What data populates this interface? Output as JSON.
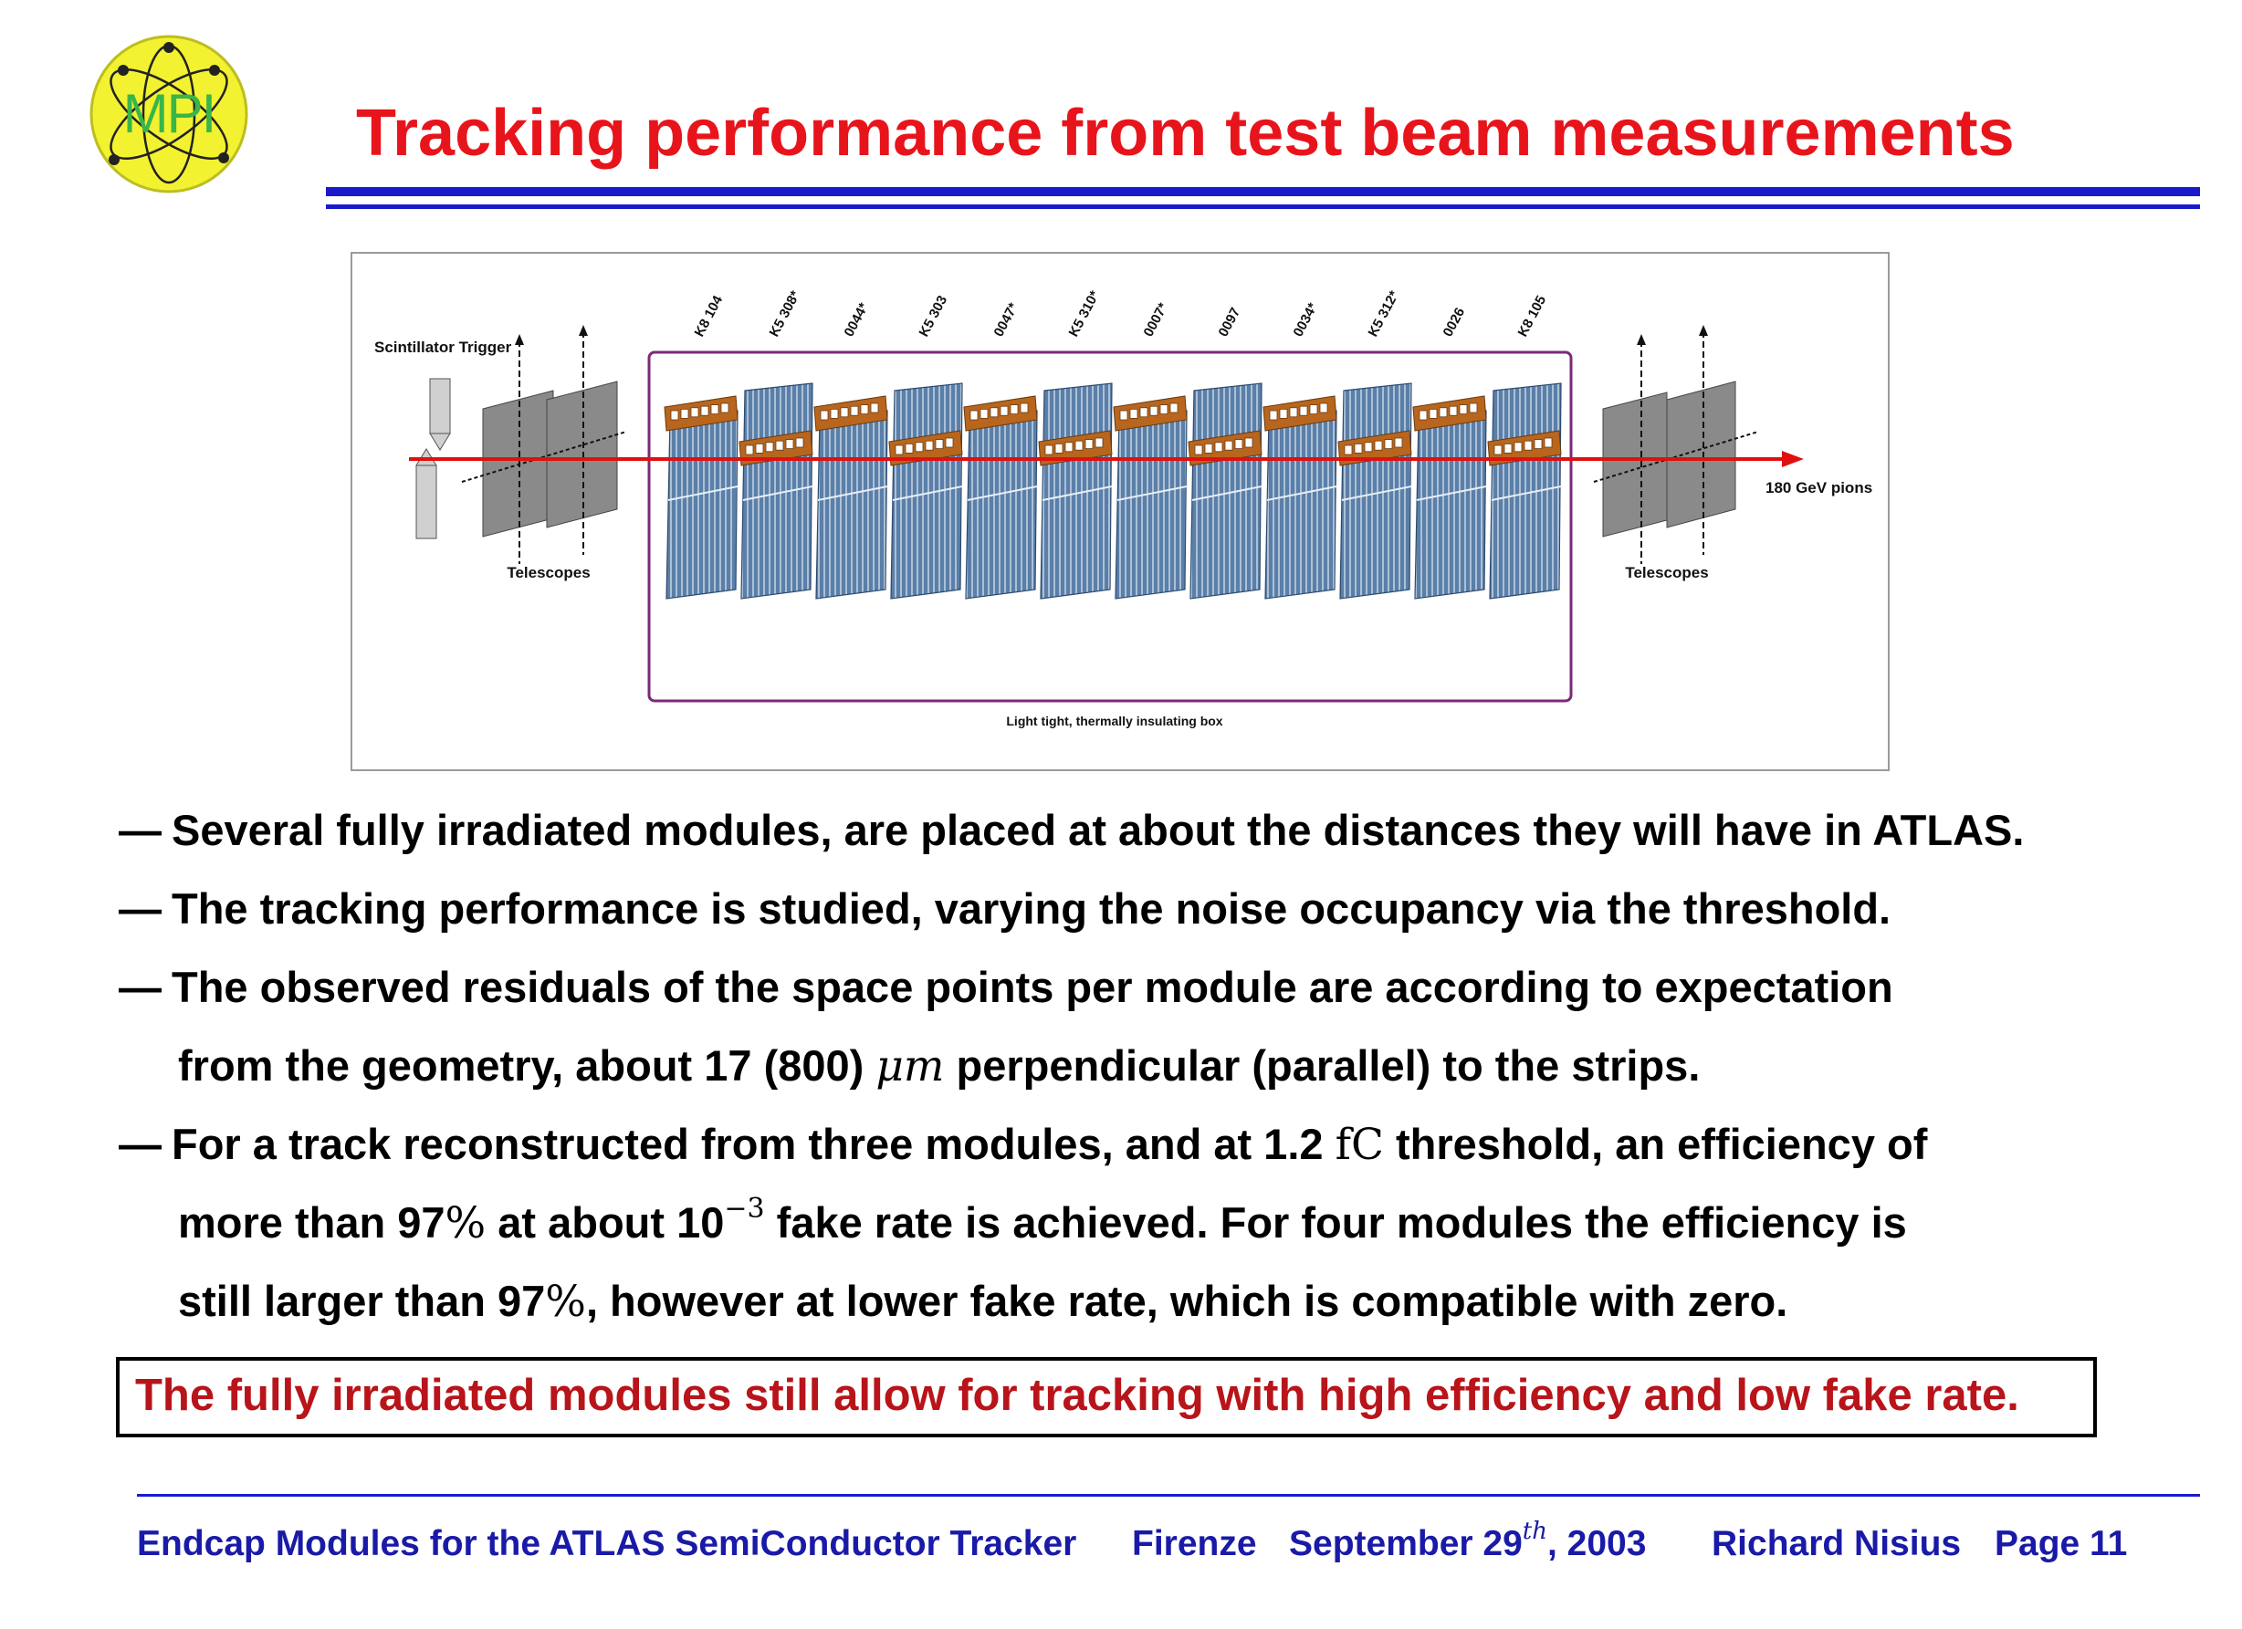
{
  "logo": {
    "text": "MPI"
  },
  "title": "Tracking performance from test beam measurements",
  "figure": {
    "scintillator_label": "Scintillator Trigger",
    "telescopes_left": "Telescopes",
    "telescopes_right": "Telescopes",
    "beam_label": "180 GeV pions",
    "box_label": "Light tight, thermally insulating box",
    "modules": [
      "K8 104",
      "K5 308*",
      "0044*",
      "K5 303",
      "0047*",
      "K5 310*",
      "0007*",
      "0097",
      "0034*",
      "K5 312*",
      "0026",
      "K8 105"
    ]
  },
  "bullets": {
    "b1": "Several fully irradiated modules, are placed at about the distances they will have in ATLAS.",
    "b2": "The tracking performance is studied, varying the noise occupancy via the threshold.",
    "b3_line1": "The observed residuals of the space points per module are according to expectation",
    "b3_line2_pre": "from the geometry, about 17 (800) ",
    "b3_line2_math": "μm",
    "b3_line2_post": " perpendicular (parallel) to the strips.",
    "b4_line1_pre": "For a track reconstructed from three modules, and at 1.2 ",
    "b4_line1_unit": "fC",
    "b4_line1_post": " threshold, an efficiency of",
    "b4_line2_a": "more than 97",
    "b4_line2_pct": "%",
    "b4_line2_b": " at about 10",
    "b4_line2_exp": "−3",
    "b4_line2_c": " fake rate is achieved. For four modules the efficiency is",
    "b4_line3_a": "still larger than 97",
    "b4_line3_pct": "%",
    "b4_line3_b": ", however at lower fake rate, which is compatible with zero."
  },
  "conclusion": "The fully irradiated modules still allow for tracking with high efficiency and low fake rate.",
  "footer": {
    "talk": "Endcap Modules for the ATLAS SemiConductor Tracker",
    "place": "Firenze",
    "date_pre": "September 29",
    "date_sup": "th",
    "date_post": ", 2003",
    "author": "Richard Nisius",
    "page": "Page 11"
  },
  "colors": {
    "title": "#e8141c",
    "rule": "#1a1acc",
    "conclusion_text": "#b8141a",
    "footer_text": "#1a1aa8",
    "box_outline": "#7a2a7a",
    "beam": "#e01010"
  }
}
